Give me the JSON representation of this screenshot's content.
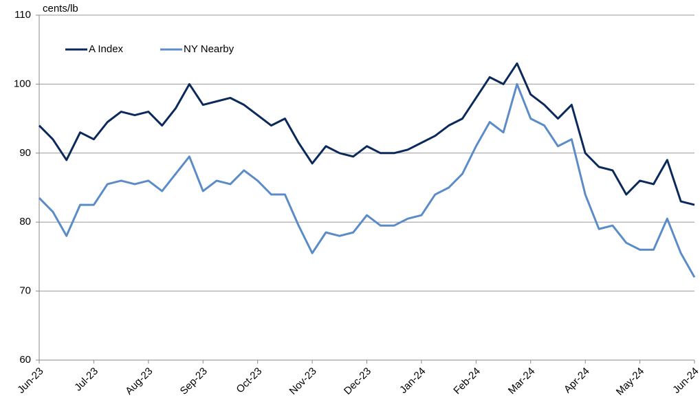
{
  "chart_data": {
    "type": "line",
    "y_label": "cents/lb",
    "categories": [
      "Jun-23",
      null,
      null,
      null,
      "Jul-23",
      null,
      null,
      null,
      "Aug-23",
      null,
      null,
      null,
      "Sep-23",
      null,
      null,
      null,
      "Oct-23",
      null,
      null,
      null,
      "Nov-23",
      null,
      null,
      null,
      "Dec-23",
      null,
      null,
      null,
      "Jan-24",
      null,
      null,
      null,
      "Feb-24",
      null,
      null,
      null,
      "Mar-24",
      null,
      null,
      null,
      "Apr-24",
      null,
      null,
      null,
      "May-24",
      null,
      null,
      null,
      "Jun-24"
    ],
    "series": [
      {
        "name": "A Index",
        "color": "#0b2a5b",
        "values": [
          94,
          92,
          89,
          93,
          92,
          94.5,
          96,
          95.5,
          96,
          94,
          96.5,
          100,
          97,
          97.5,
          98,
          97,
          95.5,
          94,
          95,
          91.5,
          88.5,
          91,
          90,
          89.5,
          91,
          90,
          90,
          90.5,
          91.5,
          92.5,
          94,
          95,
          98,
          101,
          100,
          103,
          98.5,
          97,
          95,
          97,
          90,
          88,
          87.5,
          84,
          86,
          85.5,
          89,
          83,
          82.5
        ]
      },
      {
        "name": "NY Nearby",
        "color": "#5b8cc8",
        "values": [
          83.5,
          81.5,
          78,
          82.5,
          82.5,
          85.5,
          86,
          85.5,
          86,
          84.5,
          87,
          89.5,
          84.5,
          86,
          85.5,
          87.5,
          86,
          84,
          84,
          79.5,
          75.5,
          78.5,
          78,
          78.5,
          81,
          79.5,
          79.5,
          80.5,
          81,
          84,
          85,
          87,
          91,
          94.5,
          93,
          100,
          95,
          94,
          91,
          92,
          84,
          79,
          79.5,
          77,
          76,
          76,
          80.5,
          75.5,
          72
        ]
      }
    ],
    "ylim": [
      60,
      110
    ],
    "yticks": [
      60,
      70,
      80,
      90,
      100,
      110
    ],
    "grid": true,
    "legend": "top-left"
  }
}
